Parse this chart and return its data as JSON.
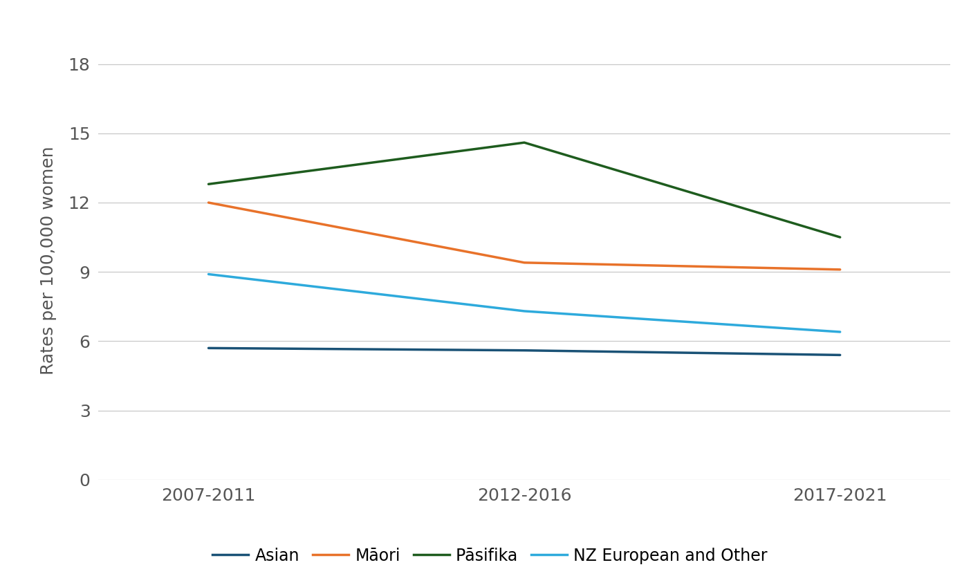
{
  "x_labels": [
    "2007-2011",
    "2012-2016",
    "2017-2021"
  ],
  "x_positions": [
    0,
    1,
    2
  ],
  "series": [
    {
      "name": "Asian",
      "values": [
        5.7,
        5.6,
        5.4
      ],
      "color": "#1A5276",
      "linewidth": 2.5
    },
    {
      "name": "Māori",
      "values": [
        12.0,
        9.4,
        9.1
      ],
      "color": "#E8722A",
      "linewidth": 2.5
    },
    {
      "name": "Pāsifika",
      "values": [
        12.8,
        14.6,
        10.5
      ],
      "color": "#1E5C1E",
      "linewidth": 2.5
    },
    {
      "name": "NZ European and Other",
      "values": [
        8.9,
        7.3,
        6.4
      ],
      "color": "#2EAADC",
      "linewidth": 2.5
    }
  ],
  "ylabel": "Rates per 100,000 women",
  "ylim": [
    0,
    19
  ],
  "yticks": [
    0,
    3,
    6,
    9,
    12,
    15,
    18
  ],
  "background_color": "#FFFFFF",
  "grid_color": "#C8C8C8",
  "legend_ncol": 4,
  "tick_label_fontsize": 18,
  "ylabel_fontsize": 18,
  "legend_fontsize": 17
}
